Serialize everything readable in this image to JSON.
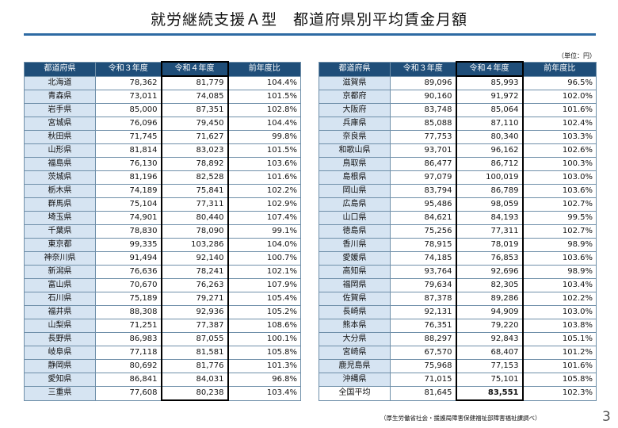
{
  "title": "就労継続支援Ａ型　都道府県別平均賃金月額",
  "unit": "（単位：円）",
  "headers": [
    "都道府県",
    "令和３年度",
    "令和４年度",
    "前年度比"
  ],
  "left_rows": [
    [
      "北海道",
      "78,362",
      "81,779",
      "104.4%"
    ],
    [
      "青森県",
      "73,011",
      "74,085",
      "101.5%"
    ],
    [
      "岩手県",
      "85,000",
      "87,351",
      "102.8%"
    ],
    [
      "宮城県",
      "76,096",
      "79,450",
      "104.4%"
    ],
    [
      "秋田県",
      "71,745",
      "71,627",
      "99.8%"
    ],
    [
      "山形県",
      "81,814",
      "83,023",
      "101.5%"
    ],
    [
      "福島県",
      "76,130",
      "78,892",
      "103.6%"
    ],
    [
      "茨城県",
      "81,196",
      "82,528",
      "101.6%"
    ],
    [
      "栃木県",
      "74,189",
      "75,841",
      "102.2%"
    ],
    [
      "群馬県",
      "75,104",
      "77,311",
      "102.9%"
    ],
    [
      "埼玉県",
      "74,901",
      "80,440",
      "107.4%"
    ],
    [
      "千葉県",
      "78,830",
      "78,090",
      "99.1%"
    ],
    [
      "東京都",
      "99,335",
      "103,286",
      "104.0%"
    ],
    [
      "神奈川県",
      "91,494",
      "92,140",
      "100.7%"
    ],
    [
      "新潟県",
      "76,636",
      "78,241",
      "102.1%"
    ],
    [
      "富山県",
      "70,670",
      "76,263",
      "107.9%"
    ],
    [
      "石川県",
      "75,189",
      "79,271",
      "105.4%"
    ],
    [
      "福井県",
      "88,308",
      "92,936",
      "105.2%"
    ],
    [
      "山梨県",
      "71,251",
      "77,387",
      "108.6%"
    ],
    [
      "長野県",
      "86,983",
      "87,055",
      "100.1%"
    ],
    [
      "岐阜県",
      "77,118",
      "81,581",
      "105.8%"
    ],
    [
      "静岡県",
      "80,692",
      "81,776",
      "101.3%"
    ],
    [
      "愛知県",
      "86,841",
      "84,031",
      "96.8%"
    ],
    [
      "三重県",
      "77,608",
      "80,238",
      "103.4%"
    ]
  ],
  "right_rows": [
    [
      "滋賀県",
      "89,096",
      "85,993",
      "96.5%"
    ],
    [
      "京都府",
      "90,160",
      "91,972",
      "102.0%"
    ],
    [
      "大阪府",
      "83,748",
      "85,064",
      "101.6%"
    ],
    [
      "兵庫県",
      "85,088",
      "87,110",
      "102.4%"
    ],
    [
      "奈良県",
      "77,753",
      "80,340",
      "103.3%"
    ],
    [
      "和歌山県",
      "93,701",
      "96,162",
      "102.6%"
    ],
    [
      "鳥取県",
      "86,477",
      "86,712",
      "100.3%"
    ],
    [
      "島根県",
      "97,079",
      "100,019",
      "103.0%"
    ],
    [
      "岡山県",
      "83,794",
      "86,789",
      "103.6%"
    ],
    [
      "広島県",
      "95,486",
      "98,059",
      "102.7%"
    ],
    [
      "山口県",
      "84,621",
      "84,193",
      "99.5%"
    ],
    [
      "徳島県",
      "75,256",
      "77,311",
      "102.7%"
    ],
    [
      "香川県",
      "78,915",
      "78,019",
      "98.9%"
    ],
    [
      "愛媛県",
      "74,185",
      "76,853",
      "103.6%"
    ],
    [
      "高知県",
      "93,764",
      "92,696",
      "98.9%"
    ],
    [
      "福岡県",
      "79,634",
      "82,305",
      "103.4%"
    ],
    [
      "佐賀県",
      "87,378",
      "89,286",
      "102.2%"
    ],
    [
      "長崎県",
      "92,131",
      "94,909",
      "103.0%"
    ],
    [
      "熊本県",
      "76,351",
      "79,220",
      "103.8%"
    ],
    [
      "大分県",
      "88,297",
      "92,843",
      "105.1%"
    ],
    [
      "宮崎県",
      "67,570",
      "68,407",
      "101.2%"
    ],
    [
      "鹿児島県",
      "75,968",
      "77,153",
      "101.6%"
    ],
    [
      "沖縄県",
      "71,015",
      "75,101",
      "105.8%"
    ],
    [
      "全国平均",
      "81,645",
      "83,551",
      "102.3%"
    ]
  ],
  "source": "（厚生労働省社会・援護局障害保健福祉部障害福祉課調べ）",
  "page_number": "3"
}
